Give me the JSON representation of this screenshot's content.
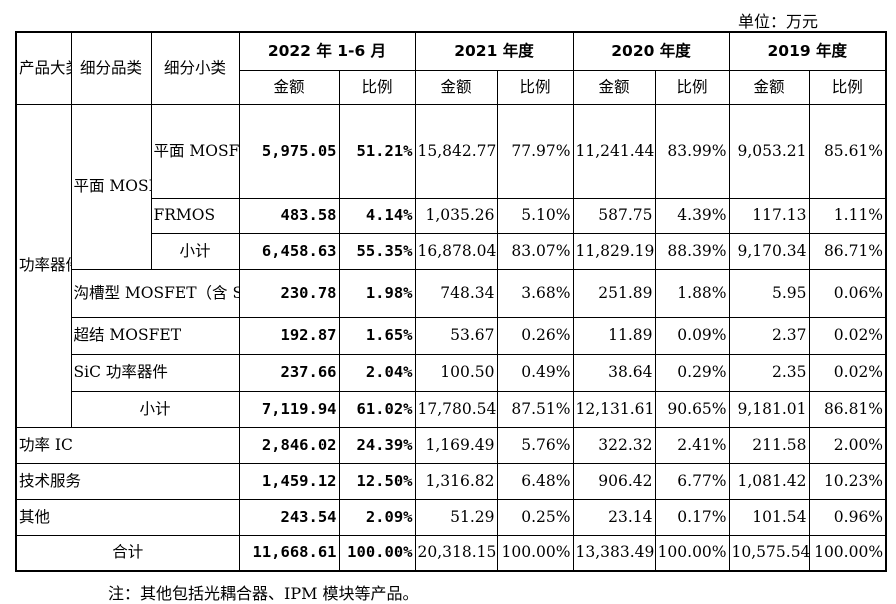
{
  "unit_label": "单位：万元",
  "note": "注：其他包括光耦合器、IPM 模块等产品。",
  "header": {
    "col_category": "产品大类",
    "col_subcategory": "细分品类",
    "col_detail": "细分小类",
    "periods": [
      "2022 年 1-6 月",
      "2021 年度",
      "2020 年度",
      "2019 年度"
    ],
    "amount": "金额",
    "ratio": "比例"
  },
  "group_power_device": "功率器件",
  "group_planar": "平面 MOSFET",
  "rows": {
    "planar_nonfrmos": {
      "label": "平面 MOSFET（不含 FRMOS）",
      "values": [
        "5,975.05",
        "51.21%",
        "15,842.77",
        "77.97%",
        "11,241.44",
        "83.99%",
        "9,053.21",
        "85.61%"
      ]
    },
    "frmos": {
      "label": "FRMOS",
      "values": [
        "483.58",
        "4.14%",
        "1,035.26",
        "5.10%",
        "587.75",
        "4.39%",
        "117.13",
        "1.11%"
      ]
    },
    "planar_subtotal": {
      "label": "小计",
      "values": [
        "6,458.63",
        "55.35%",
        "16,878.04",
        "83.07%",
        "11,829.19",
        "88.39%",
        "9,170.34",
        "86.71%"
      ]
    },
    "trench": {
      "label": "沟槽型 MOSFET（含 SGT MOSFET）",
      "values": [
        "230.78",
        "1.98%",
        "748.34",
        "3.68%",
        "251.89",
        "1.88%",
        "5.95",
        "0.06%"
      ]
    },
    "superjunction": {
      "label": "超结 MOSFET",
      "values": [
        "192.87",
        "1.65%",
        "53.67",
        "0.26%",
        "11.89",
        "0.09%",
        "2.37",
        "0.02%"
      ]
    },
    "sic": {
      "label": "SiC 功率器件",
      "values": [
        "237.66",
        "2.04%",
        "100.50",
        "0.49%",
        "38.64",
        "0.29%",
        "2.35",
        "0.02%"
      ]
    },
    "device_subtotal": {
      "label": "小计",
      "values": [
        "7,119.94",
        "61.02%",
        "17,780.54",
        "87.51%",
        "12,131.61",
        "90.65%",
        "9,181.01",
        "86.81%"
      ]
    },
    "power_ic": {
      "label": "功率 IC",
      "values": [
        "2,846.02",
        "24.39%",
        "1,169.49",
        "5.76%",
        "322.32",
        "2.41%",
        "211.58",
        "2.00%"
      ]
    },
    "tech_service": {
      "label": "技术服务",
      "values": [
        "1,459.12",
        "12.50%",
        "1,316.82",
        "6.48%",
        "906.42",
        "6.77%",
        "1,081.42",
        "10.23%"
      ]
    },
    "other": {
      "label": "其他",
      "values": [
        "243.54",
        "2.09%",
        "51.29",
        "0.25%",
        "23.14",
        "0.17%",
        "101.54",
        "0.96%"
      ]
    },
    "total": {
      "label": "合计",
      "values": [
        "11,668.61",
        "100.00%",
        "20,318.15",
        "100.00%",
        "13,383.49",
        "100.00%",
        "10,575.54",
        "100.00%"
      ]
    }
  }
}
